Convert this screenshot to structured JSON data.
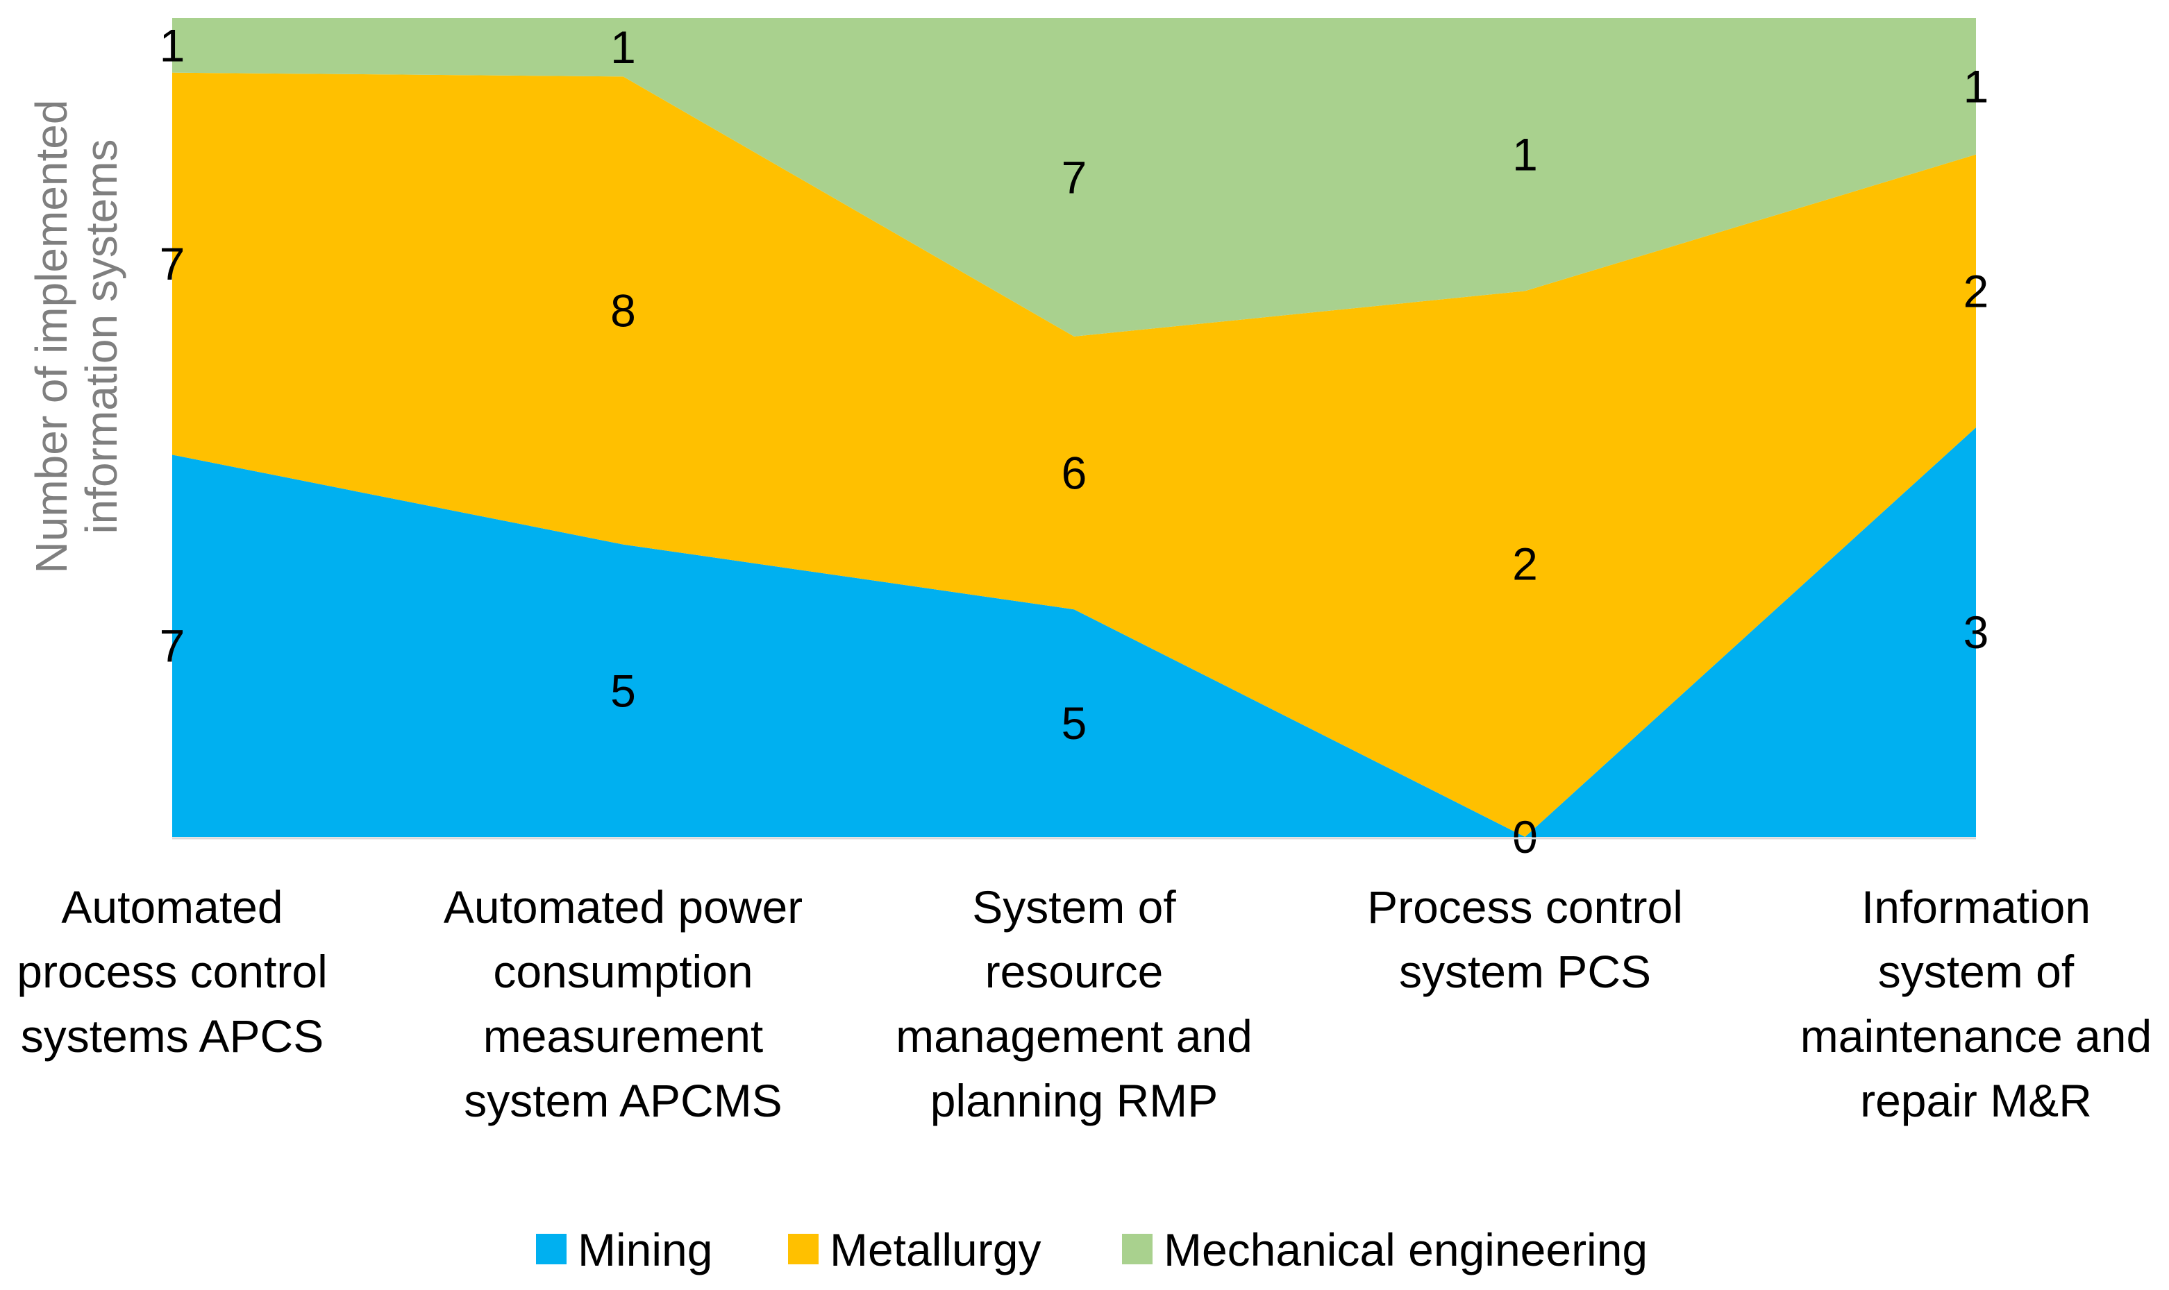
{
  "chart_data": {
    "type": "area",
    "stacked": "percent",
    "title": "",
    "xlabel": "",
    "ylabel": "Number of implemented information systems",
    "categories": [
      [
        "Automated",
        "process control",
        "systems  APCS"
      ],
      [
        "Automated power",
        "consumption",
        "measurement",
        "system APCMS"
      ],
      [
        "System of",
        "resource",
        "management and",
        "planning RMP"
      ],
      [
        "Process control",
        "system PCS"
      ],
      [
        "Information",
        "system of",
        "maintenance and",
        "repair M&R"
      ]
    ],
    "series": [
      {
        "name": "Mining",
        "color": "#00B0F0",
        "values": [
          7,
          5,
          5,
          0,
          3
        ]
      },
      {
        "name": "Metallurgy",
        "color": "#FFC000",
        "values": [
          7,
          8,
          6,
          2,
          2
        ]
      },
      {
        "name": "Mechanical engineering",
        "color": "#A9D18E",
        "values": [
          1,
          1,
          7,
          1,
          1
        ]
      }
    ],
    "legend": "bottom",
    "grid": false
  }
}
